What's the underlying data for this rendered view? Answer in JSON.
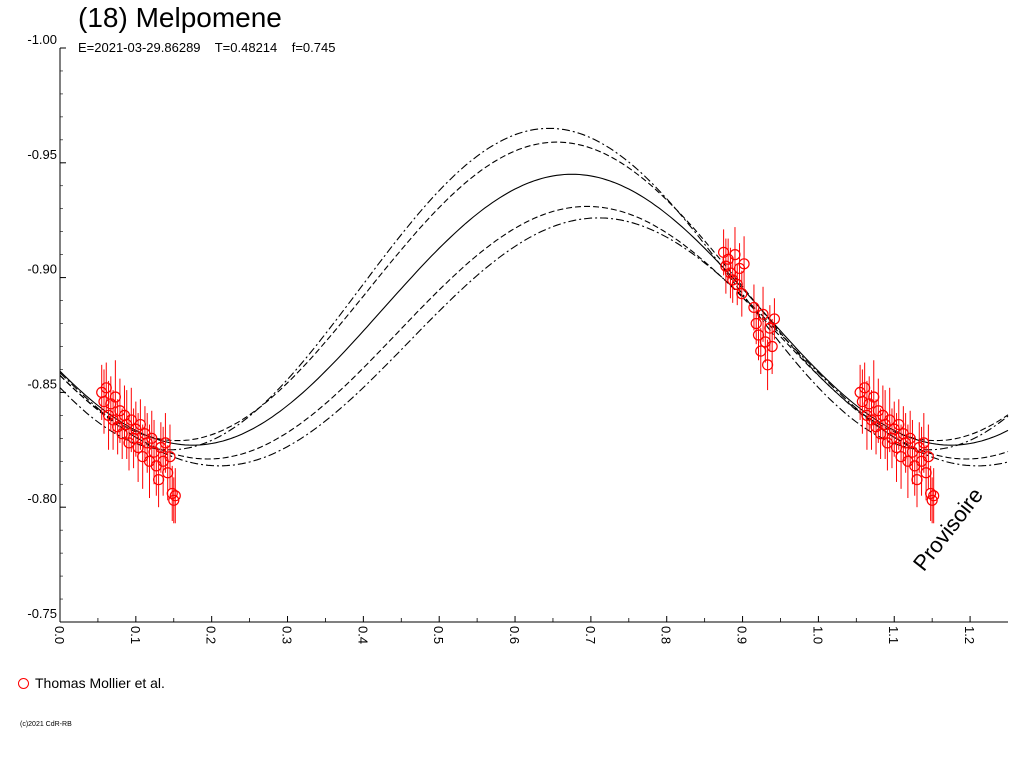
{
  "title": "(18) Melpomene",
  "subtitle": "E=2021-03-29.86289    T=0.48214    f=0.745",
  "legend_label": "Thomas Mollier et al.",
  "copyright": "(c)2021 CdR-RB",
  "watermark": "Provisoire",
  "colors": {
    "data": "#ff0000",
    "axis": "#000000",
    "curves": "#000000"
  },
  "chart_data": {
    "type": "line",
    "xlim": [
      0.0,
      1.25
    ],
    "ylim": [
      -1.0,
      -0.75
    ],
    "y_reversed": true,
    "x_ticks": [
      "0.0",
      "0.1",
      "0.2",
      "0.3",
      "0.4",
      "0.5",
      "0.6",
      "0.7",
      "0.8",
      "0.9",
      "1.0",
      "1.1",
      "1.2"
    ],
    "y_ticks": [
      "-1.00",
      "-0.95",
      "-0.90",
      "-0.85",
      "-0.80",
      "-0.75"
    ],
    "grid": false,
    "legend_position": "bottom-left",
    "model_curves": [
      {
        "style": "solid",
        "mid": -0.886,
        "amp": 0.059,
        "peak_phase": 0.675
      },
      {
        "style": "dashed",
        "mid": -0.894,
        "amp": 0.065,
        "peak_phase": 0.655
      },
      {
        "style": "dashdot",
        "mid": -0.895,
        "amp": 0.07,
        "peak_phase": 0.645
      },
      {
        "style": "dashed",
        "mid": -0.876,
        "amp": 0.055,
        "peak_phase": 0.695
      },
      {
        "style": "dashdot",
        "mid": -0.872,
        "amp": 0.054,
        "peak_phase": 0.71
      }
    ],
    "series": [
      {
        "name": "Thomas Mollier et al.",
        "x": [
          0.055,
          0.058,
          0.061,
          0.064,
          0.067,
          0.07,
          0.073,
          0.076,
          0.079,
          0.082,
          0.085,
          0.088,
          0.091,
          0.094,
          0.097,
          0.1,
          0.103,
          0.106,
          0.109,
          0.112,
          0.115,
          0.118,
          0.121,
          0.124,
          0.127,
          0.13,
          0.133,
          0.136,
          0.139,
          0.142,
          0.145,
          0.148,
          0.15,
          0.152,
          0.875,
          0.878,
          0.881,
          0.884,
          0.887,
          0.89,
          0.893,
          0.896,
          0.899,
          0.902,
          0.915,
          0.918,
          0.921,
          0.924,
          0.927,
          0.93,
          0.933,
          0.936,
          0.939,
          0.942,
          1.055,
          1.058,
          1.061,
          1.064,
          1.067,
          1.07,
          1.073,
          1.076,
          1.079,
          1.082,
          1.085,
          1.088,
          1.091,
          1.094,
          1.097,
          1.1,
          1.103,
          1.106,
          1.109,
          1.112,
          1.115,
          1.118,
          1.121,
          1.124,
          1.127,
          1.13,
          1.133,
          1.136,
          1.139,
          1.142,
          1.145,
          1.148,
          1.15,
          1.152
        ],
        "y": [
          -0.85,
          -0.846,
          -0.852,
          -0.84,
          -0.845,
          -0.838,
          -0.848,
          -0.835,
          -0.842,
          -0.832,
          -0.84,
          -0.836,
          -0.828,
          -0.838,
          -0.83,
          -0.834,
          -0.826,
          -0.836,
          -0.822,
          -0.832,
          -0.828,
          -0.82,
          -0.83,
          -0.824,
          -0.818,
          -0.812,
          -0.826,
          -0.82,
          -0.828,
          -0.815,
          -0.822,
          -0.806,
          -0.803,
          -0.805,
          -0.911,
          -0.905,
          -0.908,
          -0.902,
          -0.899,
          -0.91,
          -0.897,
          -0.904,
          -0.893,
          -0.906,
          -0.887,
          -0.88,
          -0.875,
          -0.868,
          -0.884,
          -0.872,
          -0.862,
          -0.878,
          -0.87,
          -0.882,
          -0.85,
          -0.846,
          -0.852,
          -0.84,
          -0.845,
          -0.838,
          -0.848,
          -0.835,
          -0.842,
          -0.832,
          -0.84,
          -0.836,
          -0.828,
          -0.838,
          -0.83,
          -0.834,
          -0.826,
          -0.836,
          -0.822,
          -0.832,
          -0.828,
          -0.82,
          -0.83,
          -0.824,
          -0.818,
          -0.812,
          -0.826,
          -0.82,
          -0.828,
          -0.815,
          -0.822,
          -0.806,
          -0.803,
          -0.805
        ],
        "err": [
          0.012,
          0.014,
          0.011,
          0.015,
          0.012,
          0.013,
          0.016,
          0.012,
          0.014,
          0.011,
          0.013,
          0.015,
          0.012,
          0.014,
          0.013,
          0.012,
          0.015,
          0.011,
          0.014,
          0.012,
          0.013,
          0.016,
          0.012,
          0.014,
          0.013,
          0.012,
          0.011,
          0.015,
          0.013,
          0.012,
          0.014,
          0.012,
          0.01,
          0.012,
          0.01,
          0.012,
          0.009,
          0.011,
          0.01,
          0.012,
          0.009,
          0.011,
          0.01,
          0.012,
          0.01,
          0.009,
          0.011,
          0.01,
          0.012,
          0.009,
          0.011,
          0.01,
          0.012,
          0.009,
          0.012,
          0.014,
          0.011,
          0.015,
          0.012,
          0.013,
          0.016,
          0.012,
          0.014,
          0.011,
          0.013,
          0.015,
          0.012,
          0.014,
          0.013,
          0.012,
          0.015,
          0.011,
          0.014,
          0.012,
          0.013,
          0.016,
          0.012,
          0.014,
          0.013,
          0.012,
          0.011,
          0.015,
          0.013,
          0.012,
          0.014,
          0.012,
          0.01,
          0.012
        ]
      }
    ]
  }
}
